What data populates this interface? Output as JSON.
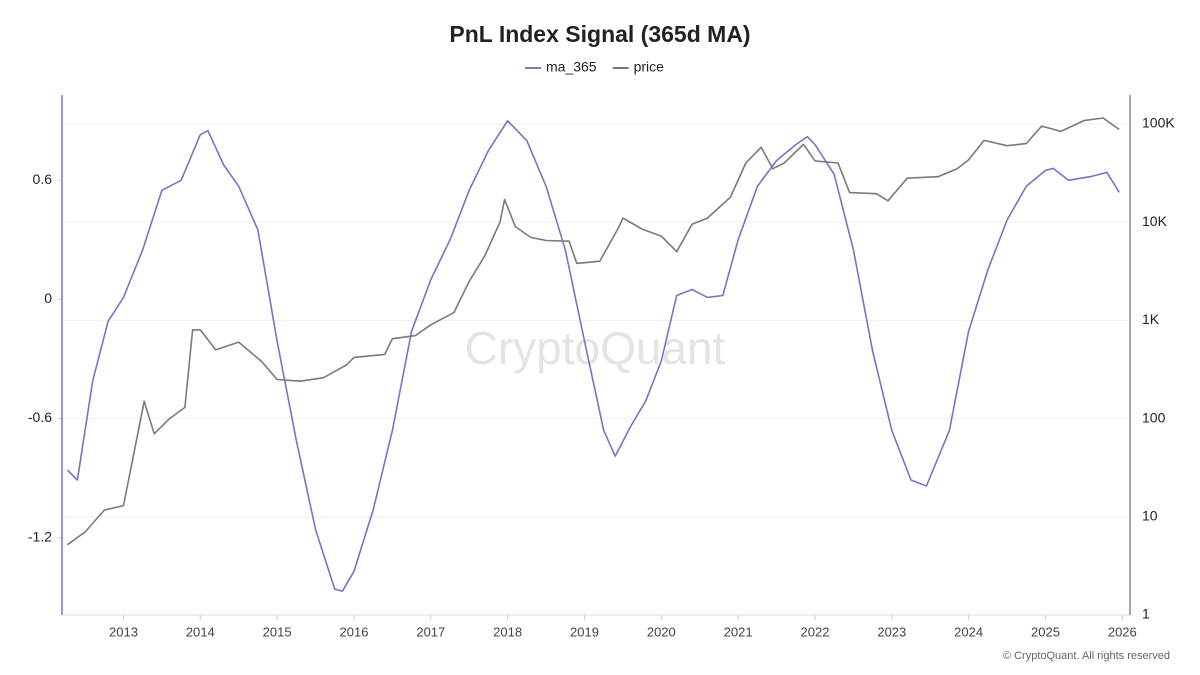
{
  "chart_data": {
    "type": "line",
    "title": "PnL Index Signal (365d MA)",
    "watermark": "CryptoQuant",
    "footer": "© CryptoQuant. All rights reserved",
    "xlim": [
      2012.2,
      2026.1
    ],
    "xticks": [
      2013,
      2014,
      2015,
      2016,
      2017,
      2018,
      2019,
      2020,
      2021,
      2022,
      2023,
      2024,
      2025,
      2026
    ],
    "ylim": [
      -1.59,
      1.03
    ],
    "yticks": [
      -1.2,
      -0.6,
      0,
      0.6
    ],
    "y2lim": [
      1,
      197000
    ],
    "y2scale": "log",
    "y2ticks": [
      1,
      10,
      100,
      {
        "value": 1000,
        "label": "1K"
      },
      {
        "value": 10000,
        "label": "10K"
      },
      {
        "value": 100000,
        "label": "100K"
      }
    ],
    "grid": true,
    "legend": "top",
    "series": [
      {
        "name": "ma_365",
        "color": "#7b72c8",
        "x": [
          2012.27,
          2012.4,
          2012.6,
          2012.8,
          2013.0,
          2013.25,
          2013.5,
          2013.75,
          2014.0,
          2014.1,
          2014.3,
          2014.5,
          2014.75,
          2015.0,
          2015.25,
          2015.5,
          2015.75,
          2015.85,
          2016.0,
          2016.25,
          2016.5,
          2016.75,
          2017.0,
          2017.25,
          2017.5,
          2017.75,
          2018.0,
          2018.25,
          2018.5,
          2018.75,
          2019.0,
          2019.25,
          2019.4,
          2019.6,
          2019.8,
          2020.0,
          2020.2,
          2020.4,
          2020.6,
          2020.8,
          2021.0,
          2021.25,
          2021.5,
          2021.75,
          2021.9,
          2022.0,
          2022.25,
          2022.5,
          2022.75,
          2023.0,
          2023.25,
          2023.45,
          2023.75,
          2024.0,
          2024.25,
          2024.5,
          2024.75,
          2025.0,
          2025.1,
          2025.3,
          2025.6,
          2025.8,
          2025.96
        ],
        "values": [
          -0.86,
          -0.91,
          -0.41,
          -0.11,
          0.01,
          0.25,
          0.55,
          0.6,
          0.83,
          0.85,
          0.68,
          0.57,
          0.35,
          -0.21,
          -0.71,
          -1.16,
          -1.46,
          -1.47,
          -1.37,
          -1.06,
          -0.66,
          -0.16,
          0.1,
          0.3,
          0.55,
          0.75,
          0.9,
          0.8,
          0.57,
          0.25,
          -0.21,
          -0.66,
          -0.79,
          -0.64,
          -0.51,
          -0.31,
          0.02,
          0.05,
          0.01,
          0.02,
          0.3,
          0.57,
          0.7,
          0.78,
          0.82,
          0.78,
          0.63,
          0.25,
          -0.26,
          -0.66,
          -0.91,
          -0.94,
          -0.66,
          -0.16,
          0.15,
          0.4,
          0.57,
          0.65,
          0.66,
          0.6,
          0.62,
          0.64,
          0.54
        ]
      },
      {
        "name": "price",
        "color": "#7a7a7a",
        "axis": "y2",
        "x": [
          2012.27,
          2012.5,
          2012.75,
          2013.0,
          2013.27,
          2013.4,
          2013.6,
          2013.8,
          2013.9,
          2014.0,
          2014.2,
          2014.5,
          2014.8,
          2015.0,
          2015.3,
          2015.6,
          2015.9,
          2016.0,
          2016.4,
          2016.5,
          2016.8,
          2017.0,
          2017.3,
          2017.5,
          2017.7,
          2017.9,
          2017.96,
          2018.1,
          2018.3,
          2018.5,
          2018.8,
          2018.9,
          2019.2,
          2019.45,
          2019.5,
          2019.75,
          2020.0,
          2020.2,
          2020.4,
          2020.6,
          2020.9,
          2021.1,
          2021.3,
          2021.45,
          2021.6,
          2021.85,
          2022.0,
          2022.3,
          2022.45,
          2022.8,
          2022.95,
          2023.2,
          2023.6,
          2023.85,
          2024.0,
          2024.2,
          2024.5,
          2024.75,
          2024.95,
          2025.2,
          2025.5,
          2025.75,
          2025.96
        ],
        "values": [
          5.2,
          7,
          11.7,
          13,
          150,
          70,
          100,
          130,
          800,
          800,
          500,
          600,
          380,
          250,
          240,
          260,
          350,
          420,
          450,
          650,
          700,
          900,
          1200,
          2500,
          4500,
          10000,
          17000,
          9000,
          7000,
          6500,
          6400,
          3800,
          4000,
          9000,
          11000,
          8500,
          7200,
          5000,
          9500,
          11000,
          18000,
          40000,
          58000,
          35000,
          40000,
          62000,
          42000,
          40000,
          20000,
          19500,
          16500,
          28000,
          29000,
          35000,
          43000,
          68000,
          60000,
          63000,
          95000,
          84000,
          108000,
          115000,
          88000
        ]
      }
    ]
  }
}
